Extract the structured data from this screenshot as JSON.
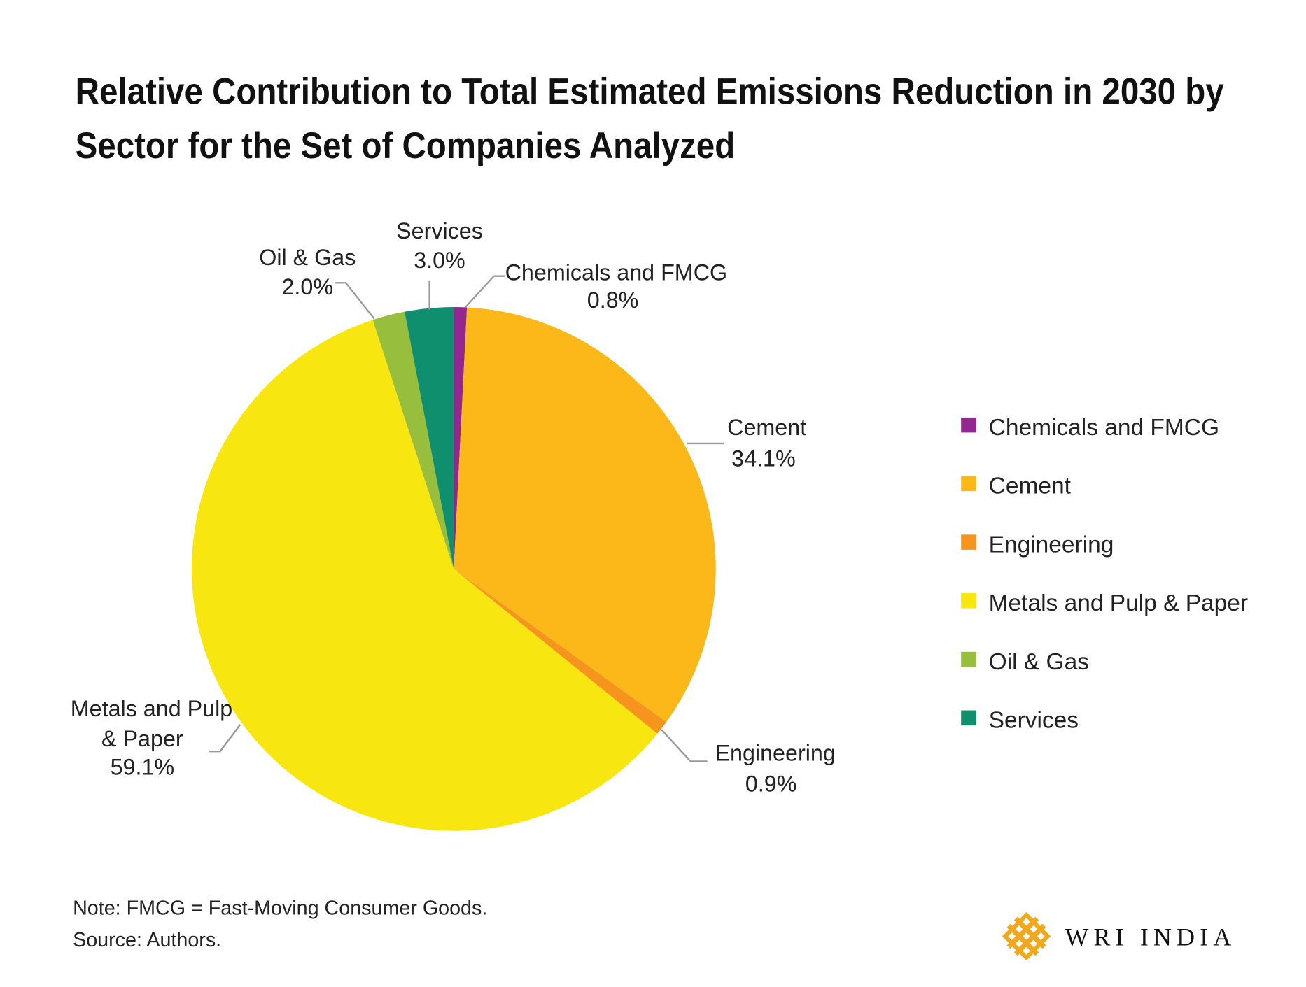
{
  "chart_data": {
    "type": "pie",
    "title": "Relative Contribution to Total Estimated Emissions Reduction in 2030 by Sector for the Set of Companies Analyzed",
    "title_lines": [
      "Relative Contribution to Total Estimated Emissions Reduction in 2030 by",
      "Sector for the Set of Companies Analyzed"
    ],
    "start": "top, clockwise",
    "slices": [
      {
        "label": "Chemicals and FMCG",
        "value": 0.8,
        "display": "0.8%",
        "color": "#93278f"
      },
      {
        "label": "Cement",
        "value": 34.1,
        "display": "34.1%",
        "color": "#fbb818"
      },
      {
        "label": "Engineering",
        "value": 0.9,
        "display": "0.9%",
        "color": "#f7941d"
      },
      {
        "label": "Metals and Pulp & Paper",
        "value": 59.1,
        "display": "59.1%",
        "color": "#f8e610"
      },
      {
        "label": "Oil & Gas",
        "value": 2.0,
        "display": "2.0%",
        "color": "#97be3d"
      },
      {
        "label": "Services",
        "value": 3.0,
        "display": "3.0%",
        "color": "#0f8f6e"
      }
    ],
    "metals_label_lines": [
      "Metals and Pulp",
      "& Paper"
    ],
    "legend_placement": "right"
  },
  "notes": {
    "note": "Note: FMCG = Fast-Moving Consumer Goods.",
    "source": "Source: Authors."
  },
  "logo": {
    "text": "WRI INDIA",
    "color": "#f0a81c"
  }
}
